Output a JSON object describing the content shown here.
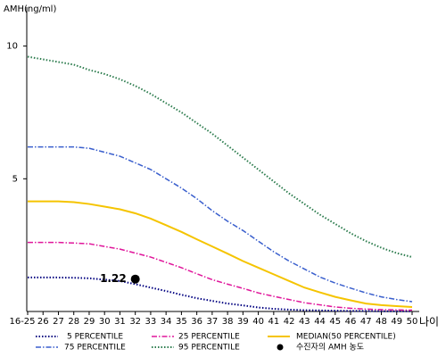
{
  "chart_data": {
    "type": "line",
    "y_label": "AMH(ng/ml)",
    "x_label": "나이",
    "categories": [
      "16-25",
      "26",
      "27",
      "28",
      "29",
      "30",
      "31",
      "32",
      "33",
      "34",
      "35",
      "36",
      "37",
      "38",
      "39",
      "40",
      "41",
      "42",
      "43",
      "44",
      "45",
      "46",
      "47",
      "48",
      "49",
      "50"
    ],
    "ylim": [
      0,
      11.4
    ],
    "yticks": [
      5,
      10
    ],
    "series": [
      {
        "name": "5 PERCENTILE",
        "color": "#000080",
        "style": "dotted",
        "values": [
          1.28,
          1.28,
          1.28,
          1.27,
          1.25,
          1.2,
          1.15,
          1.03,
          0.9,
          0.77,
          0.63,
          0.5,
          0.4,
          0.3,
          0.23,
          0.15,
          0.1,
          0.07,
          0.05,
          0.04,
          0.03,
          0.02,
          0.02,
          0.01,
          0.01,
          0.01
        ]
      },
      {
        "name": "25 PERCENTILE",
        "color": "#e0169b",
        "style": "dashdot",
        "values": [
          2.6,
          2.6,
          2.6,
          2.58,
          2.55,
          2.45,
          2.35,
          2.2,
          2.05,
          1.85,
          1.65,
          1.42,
          1.2,
          1.03,
          0.87,
          0.7,
          0.57,
          0.45,
          0.33,
          0.25,
          0.17,
          0.12,
          0.09,
          0.07,
          0.06,
          0.05
        ]
      },
      {
        "name": "MEDIAN(50 PERCENTILE)",
        "color": "#f5c400",
        "style": "solid",
        "values": [
          4.15,
          4.15,
          4.15,
          4.12,
          4.05,
          3.95,
          3.85,
          3.7,
          3.5,
          3.25,
          3.0,
          2.72,
          2.45,
          2.18,
          1.9,
          1.65,
          1.4,
          1.15,
          0.9,
          0.72,
          0.55,
          0.42,
          0.3,
          0.24,
          0.2,
          0.17
        ]
      },
      {
        "name": "75 PERCENTILE",
        "color": "#3a5fcd",
        "style": "dashdot",
        "values": [
          6.2,
          6.2,
          6.2,
          6.2,
          6.15,
          6.0,
          5.85,
          5.6,
          5.35,
          5.0,
          4.65,
          4.25,
          3.8,
          3.4,
          3.05,
          2.65,
          2.25,
          1.9,
          1.6,
          1.3,
          1.07,
          0.88,
          0.7,
          0.55,
          0.45,
          0.37
        ]
      },
      {
        "name": "95 PERCENTILE",
        "color": "#2e7d4f",
        "style": "dotted",
        "values": [
          9.6,
          9.5,
          9.4,
          9.3,
          9.1,
          8.95,
          8.75,
          8.5,
          8.2,
          7.85,
          7.5,
          7.1,
          6.7,
          6.25,
          5.8,
          5.35,
          4.9,
          4.45,
          4.05,
          3.65,
          3.3,
          2.95,
          2.65,
          2.4,
          2.2,
          2.05
        ]
      }
    ],
    "point": {
      "name": "수진자의 AMH 농도",
      "category": "32",
      "value": 1.22,
      "color": "#000000"
    }
  }
}
